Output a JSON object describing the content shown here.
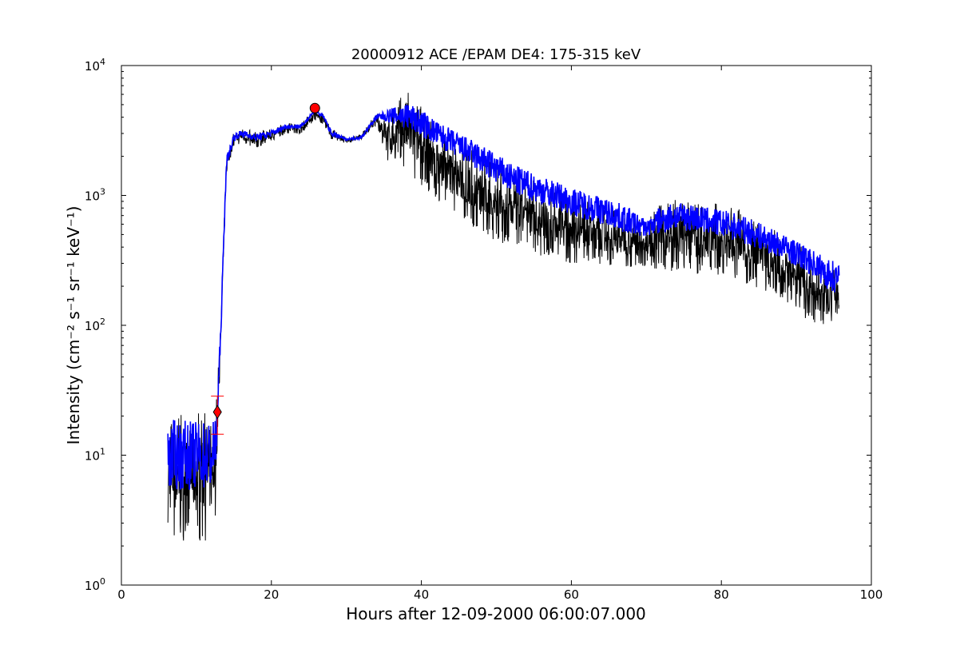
{
  "chart_data": {
    "type": "line",
    "title": "20000912 ACE /EPAM DE4: 175-315 keV",
    "xlabel": "Hours after 12-09-2000 06:00:07.000",
    "ylabel": "Intensity (cm⁻² s⁻¹ sr⁻¹ keV⁻¹)",
    "xlim": [
      0,
      100
    ],
    "ylim": [
      1,
      10000
    ],
    "yscale": "log",
    "grid": false,
    "x_ticks": [
      "0",
      "20",
      "40",
      "60",
      "80",
      "100"
    ],
    "y_ticks": [
      {
        "base": "10",
        "exp": "0"
      },
      {
        "base": "10",
        "exp": "1"
      },
      {
        "base": "10",
        "exp": "2"
      },
      {
        "base": "10",
        "exp": "3"
      },
      {
        "base": "10",
        "exp": "4"
      }
    ],
    "colors": {
      "raw": "#000000",
      "smoothed": "#0000ff",
      "markers": "#ff0000"
    },
    "series": [
      {
        "role": "raw intensity envelope",
        "color": "#000000",
        "x": [
          6.2,
          8,
          10,
          12,
          12.6,
          13.2,
          14,
          15,
          16,
          18,
          20,
          22,
          24,
          25.8,
          27,
          28,
          30,
          32,
          34,
          36,
          37,
          38,
          40,
          42,
          45,
          48,
          50,
          52,
          55,
          58,
          60,
          63,
          66,
          68,
          70,
          72,
          74,
          76,
          78,
          80,
          82,
          84,
          86,
          88,
          90,
          92,
          94,
          95.7
        ],
        "upper": [
          22,
          22,
          21,
          22,
          28,
          90,
          2000,
          3100,
          3300,
          3100,
          3300,
          3600,
          3600,
          4700,
          4200,
          3300,
          2800,
          3000,
          4300,
          4800,
          5500,
          8000,
          5000,
          3500,
          2600,
          2000,
          1800,
          1500,
          1300,
          1100,
          1000,
          900,
          800,
          700,
          620,
          900,
          950,
          900,
          900,
          850,
          800,
          700,
          600,
          500,
          420,
          380,
          300,
          300
        ],
        "lower": [
          2.2,
          2.2,
          2.2,
          2.2,
          3.5,
          60,
          1500,
          2400,
          2500,
          2300,
          2600,
          3000,
          3000,
          3800,
          3500,
          2700,
          2500,
          2700,
          3500,
          1500,
          2000,
          1400,
          1200,
          900,
          700,
          500,
          450,
          400,
          350,
          320,
          300,
          300,
          280,
          280,
          280,
          260,
          260,
          250,
          240,
          240,
          230,
          200,
          180,
          160,
          130,
          100,
          90,
          95
        ]
      },
      {
        "role": "smoothed intensity",
        "color": "#0000ff",
        "x": [
          6.2,
          8,
          10,
          12,
          12.6,
          13.2,
          14,
          15,
          16,
          18,
          20,
          22,
          24,
          25.8,
          27,
          28,
          30,
          32,
          34,
          36,
          37,
          38,
          40,
          42,
          45,
          48,
          50,
          52,
          55,
          58,
          60,
          63,
          66,
          68,
          70,
          72,
          74,
          76,
          78,
          80,
          82,
          84,
          86,
          88,
          90,
          92,
          94,
          95.7
        ],
        "values": [
          10,
          10,
          10,
          10,
          12,
          75,
          1800,
          2800,
          3000,
          2800,
          3000,
          3400,
          3400,
          4500,
          4000,
          3000,
          2700,
          2800,
          4000,
          4200,
          4100,
          4100,
          3600,
          3000,
          2400,
          1900,
          1600,
          1350,
          1150,
          1000,
          900,
          800,
          700,
          620,
          560,
          650,
          700,
          680,
          640,
          610,
          570,
          520,
          460,
          410,
          360,
          310,
          250,
          230
        ],
        "spread_upper": [
          20,
          20,
          19,
          20,
          18,
          90,
          2000,
          3000,
          3200,
          3000,
          3200,
          3550,
          3550,
          4600,
          4150,
          3200,
          2750,
          2900,
          4200,
          4600,
          4900,
          5200,
          4600,
          3800,
          3000,
          2500,
          2100,
          1800,
          1500,
          1300,
          1200,
          1050,
          900,
          800,
          650,
          850,
          880,
          850,
          800,
          780,
          720,
          650,
          580,
          500,
          440,
          380,
          330,
          320
        ],
        "spread_lower": [
          5,
          5,
          5,
          5,
          6,
          62,
          1600,
          2600,
          2800,
          2600,
          2800,
          3250,
          3250,
          4400,
          3850,
          2850,
          2650,
          2700,
          3800,
          3300,
          3200,
          3000,
          2700,
          2300,
          1800,
          1400,
          1150,
          1000,
          850,
          750,
          700,
          600,
          520,
          470,
          470,
          480,
          500,
          490,
          470,
          450,
          420,
          380,
          340,
          300,
          260,
          220,
          180,
          170
        ]
      }
    ],
    "markers": [
      {
        "shape": "diamond",
        "x": 12.8,
        "y": 21.5,
        "error_low": 14.5,
        "error_high": 28.5
      },
      {
        "shape": "circle",
        "x": 25.8,
        "y": 4700
      }
    ]
  }
}
